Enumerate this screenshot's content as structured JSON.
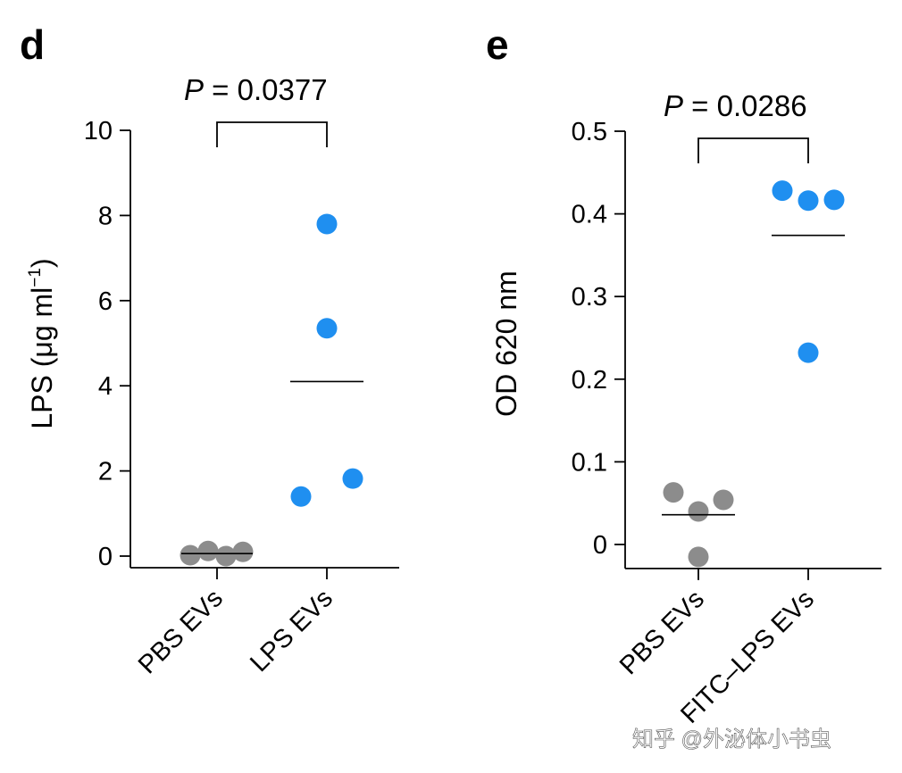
{
  "chart_data": [
    {
      "type": "scatter",
      "panel_label": "d",
      "ylabel": "LPS (μg ml⁻¹)",
      "ylabel_parts": [
        "LPS (μg ml",
        "−1",
        ")"
      ],
      "ylim": [
        0,
        10
      ],
      "yticks": [
        0,
        2,
        4,
        6,
        8,
        10
      ],
      "ytick_labels": [
        "0",
        "2",
        "4",
        "6",
        "8",
        "10"
      ],
      "categories": [
        "PBS EVs",
        "LPS EVs"
      ],
      "series": [
        {
          "category": "PBS EVs",
          "color": "#8c8c8c",
          "values": [
            0.02,
            0.12,
            0.0,
            0.1
          ],
          "mean": 0.06
        },
        {
          "category": "LPS EVs",
          "color": "#1f8ff0",
          "values": [
            1.4,
            7.8,
            5.35,
            1.82
          ],
          "mean": 4.1
        }
      ],
      "annotation": {
        "p_prefix": "P",
        "p_value": " = 0.0377"
      }
    },
    {
      "type": "scatter",
      "panel_label": "e",
      "ylabel": "OD 620 nm",
      "ylim": [
        -0.015,
        0.5
      ],
      "yticks": [
        0,
        0.1,
        0.2,
        0.3,
        0.4,
        0.5
      ],
      "ytick_labels": [
        "0",
        "0.1",
        "0.2",
        "0.3",
        "0.4",
        "0.5"
      ],
      "categories": [
        "PBS EVs",
        "FITC–LPS EVs"
      ],
      "series": [
        {
          "category": "PBS EVs",
          "color": "#8c8c8c",
          "values": [
            0.063,
            0.04,
            0.054,
            -0.015
          ],
          "mean": 0.036
        },
        {
          "category": "FITC–LPS EVs",
          "color": "#1f8ff0",
          "values": [
            0.428,
            0.416,
            0.417,
            0.232
          ],
          "mean": 0.374
        }
      ],
      "annotation": {
        "p_prefix": "P",
        "p_value": " = 0.0286"
      }
    }
  ],
  "watermark": "知乎 @外泌体小书虫"
}
